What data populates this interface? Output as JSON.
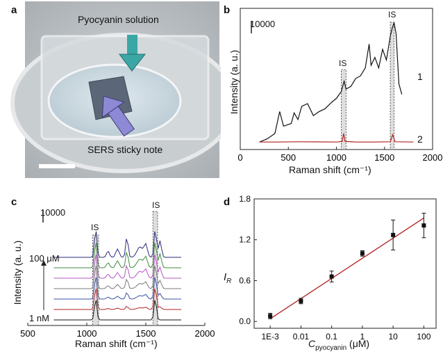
{
  "figure": {
    "panel_a": {
      "label": "a",
      "callout_top": "Pyocyanin solution",
      "callout_bottom": "SERS sticky note"
    },
    "panel_b": {
      "label": "b",
      "scale_bar_label": "10000",
      "is_label_1": "IS",
      "is_label_2": "IS",
      "trace_label_1": "1",
      "trace_label_2": "2",
      "ylabel": "Intensity (a. u.)",
      "xlabel": "Raman shift (cm⁻¹)",
      "xticks": [
        "0",
        "500",
        "1000",
        "1500",
        "2000"
      ]
    },
    "panel_c": {
      "label": "c",
      "scale_bar_label": "10000",
      "is_label_1": "IS",
      "is_label_2": "IS",
      "top_conc": "100 μM",
      "bottom_conc": "1 nM",
      "ylabel": "Intensity (a. u.)",
      "xlabel": "Raman shift (cm⁻¹)",
      "xticks": [
        "500",
        "1000",
        "1500",
        "2000"
      ]
    },
    "panel_d": {
      "label": "d",
      "ylabel": "I",
      "ylabel_sub": "R",
      "xlabel_main": "C",
      "xlabel_sub": "pyocyanin",
      "xlabel_unit": " (μM)",
      "xticks": [
        "1E-3",
        "0.01",
        "0.1",
        "1",
        "10",
        "100"
      ],
      "yticks": [
        "0.0",
        "0.6",
        "1.2",
        "1.8"
      ]
    }
  },
  "chart_data": [
    {
      "type": "line",
      "panel": "b",
      "xlabel": "Raman shift (cm⁻¹)",
      "ylabel": "Intensity (a. u.)",
      "xlim": [
        0,
        2000
      ],
      "series": [
        {
          "name": "1",
          "color": "#111111",
          "x": [
            200,
            280,
            360,
            410,
            450,
            530,
            560,
            600,
            640,
            700,
            760,
            820,
            880,
            950,
            1000,
            1050,
            1080,
            1100,
            1150,
            1200,
            1250,
            1300,
            1340,
            1360,
            1400,
            1440,
            1480,
            1520,
            1560,
            1580,
            1600,
            1620,
            1650,
            1680
          ],
          "y": [
            1000,
            2200,
            4200,
            12500,
            7000,
            8000,
            12000,
            9500,
            14500,
            15500,
            11000,
            12500,
            13500,
            16000,
            17500,
            20000,
            24000,
            21000,
            22000,
            25000,
            26000,
            29000,
            38000,
            30000,
            33000,
            29000,
            36000,
            32000,
            41000,
            44000,
            46000,
            42000,
            23000,
            19000
          ]
        },
        {
          "name": "2",
          "color": "#b22222",
          "x": [
            200,
            400,
            600,
            800,
            1000,
            1060,
            1075,
            1090,
            1200,
            1400,
            1560,
            1585,
            1610,
            1800
          ],
          "y": [
            1000,
            1000,
            1100,
            1050,
            1000,
            1200,
            4200,
            1200,
            1000,
            1000,
            1100,
            3800,
            1100,
            1000
          ]
        }
      ],
      "highlight_bands": [
        [
          1050,
          1100
        ],
        [
          1560,
          1600
        ]
      ]
    },
    {
      "type": "line",
      "panel": "c",
      "xlabel": "Raman shift (cm⁻¹)",
      "ylabel": "Intensity (a. u.)",
      "xlim": [
        500,
        2000
      ],
      "series": [
        {
          "name": "1 nM",
          "color": "#111111",
          "offset": 0
        },
        {
          "name": "",
          "color": "#b22222",
          "offset": 1
        },
        {
          "name": "",
          "color": "#3a4fa8",
          "offset": 2
        },
        {
          "name": "",
          "color": "#7a7a7a",
          "offset": 3
        },
        {
          "name": "",
          "color": "#b455c4",
          "offset": 4
        },
        {
          "name": "",
          "color": "#3f8a3f",
          "offset": 5
        },
        {
          "name": "100 μM",
          "color": "#2a2a7a",
          "offset": 6
        }
      ],
      "highlight_bands": [
        [
          1050,
          1100
        ],
        [
          1560,
          1600
        ]
      ]
    },
    {
      "type": "scatter",
      "panel": "d",
      "xscale": "log",
      "xlabel": "Cpyocyanin (μM)",
      "ylabel": "IR",
      "ylim": [
        -0.1,
        1.8
      ],
      "xlim": [
        0.0003,
        250
      ],
      "x": [
        0.001,
        0.01,
        0.1,
        1,
        10,
        100
      ],
      "y": [
        0.08,
        0.3,
        0.66,
        1.0,
        1.27,
        1.41
      ],
      "yerr": [
        0.04,
        0.04,
        0.08,
        0.04,
        0.22,
        0.18
      ],
      "fit_line": {
        "x": [
          0.001,
          100
        ],
        "y": [
          0.04,
          1.52
        ],
        "color": "#b22222"
      },
      "grid": false
    }
  ]
}
